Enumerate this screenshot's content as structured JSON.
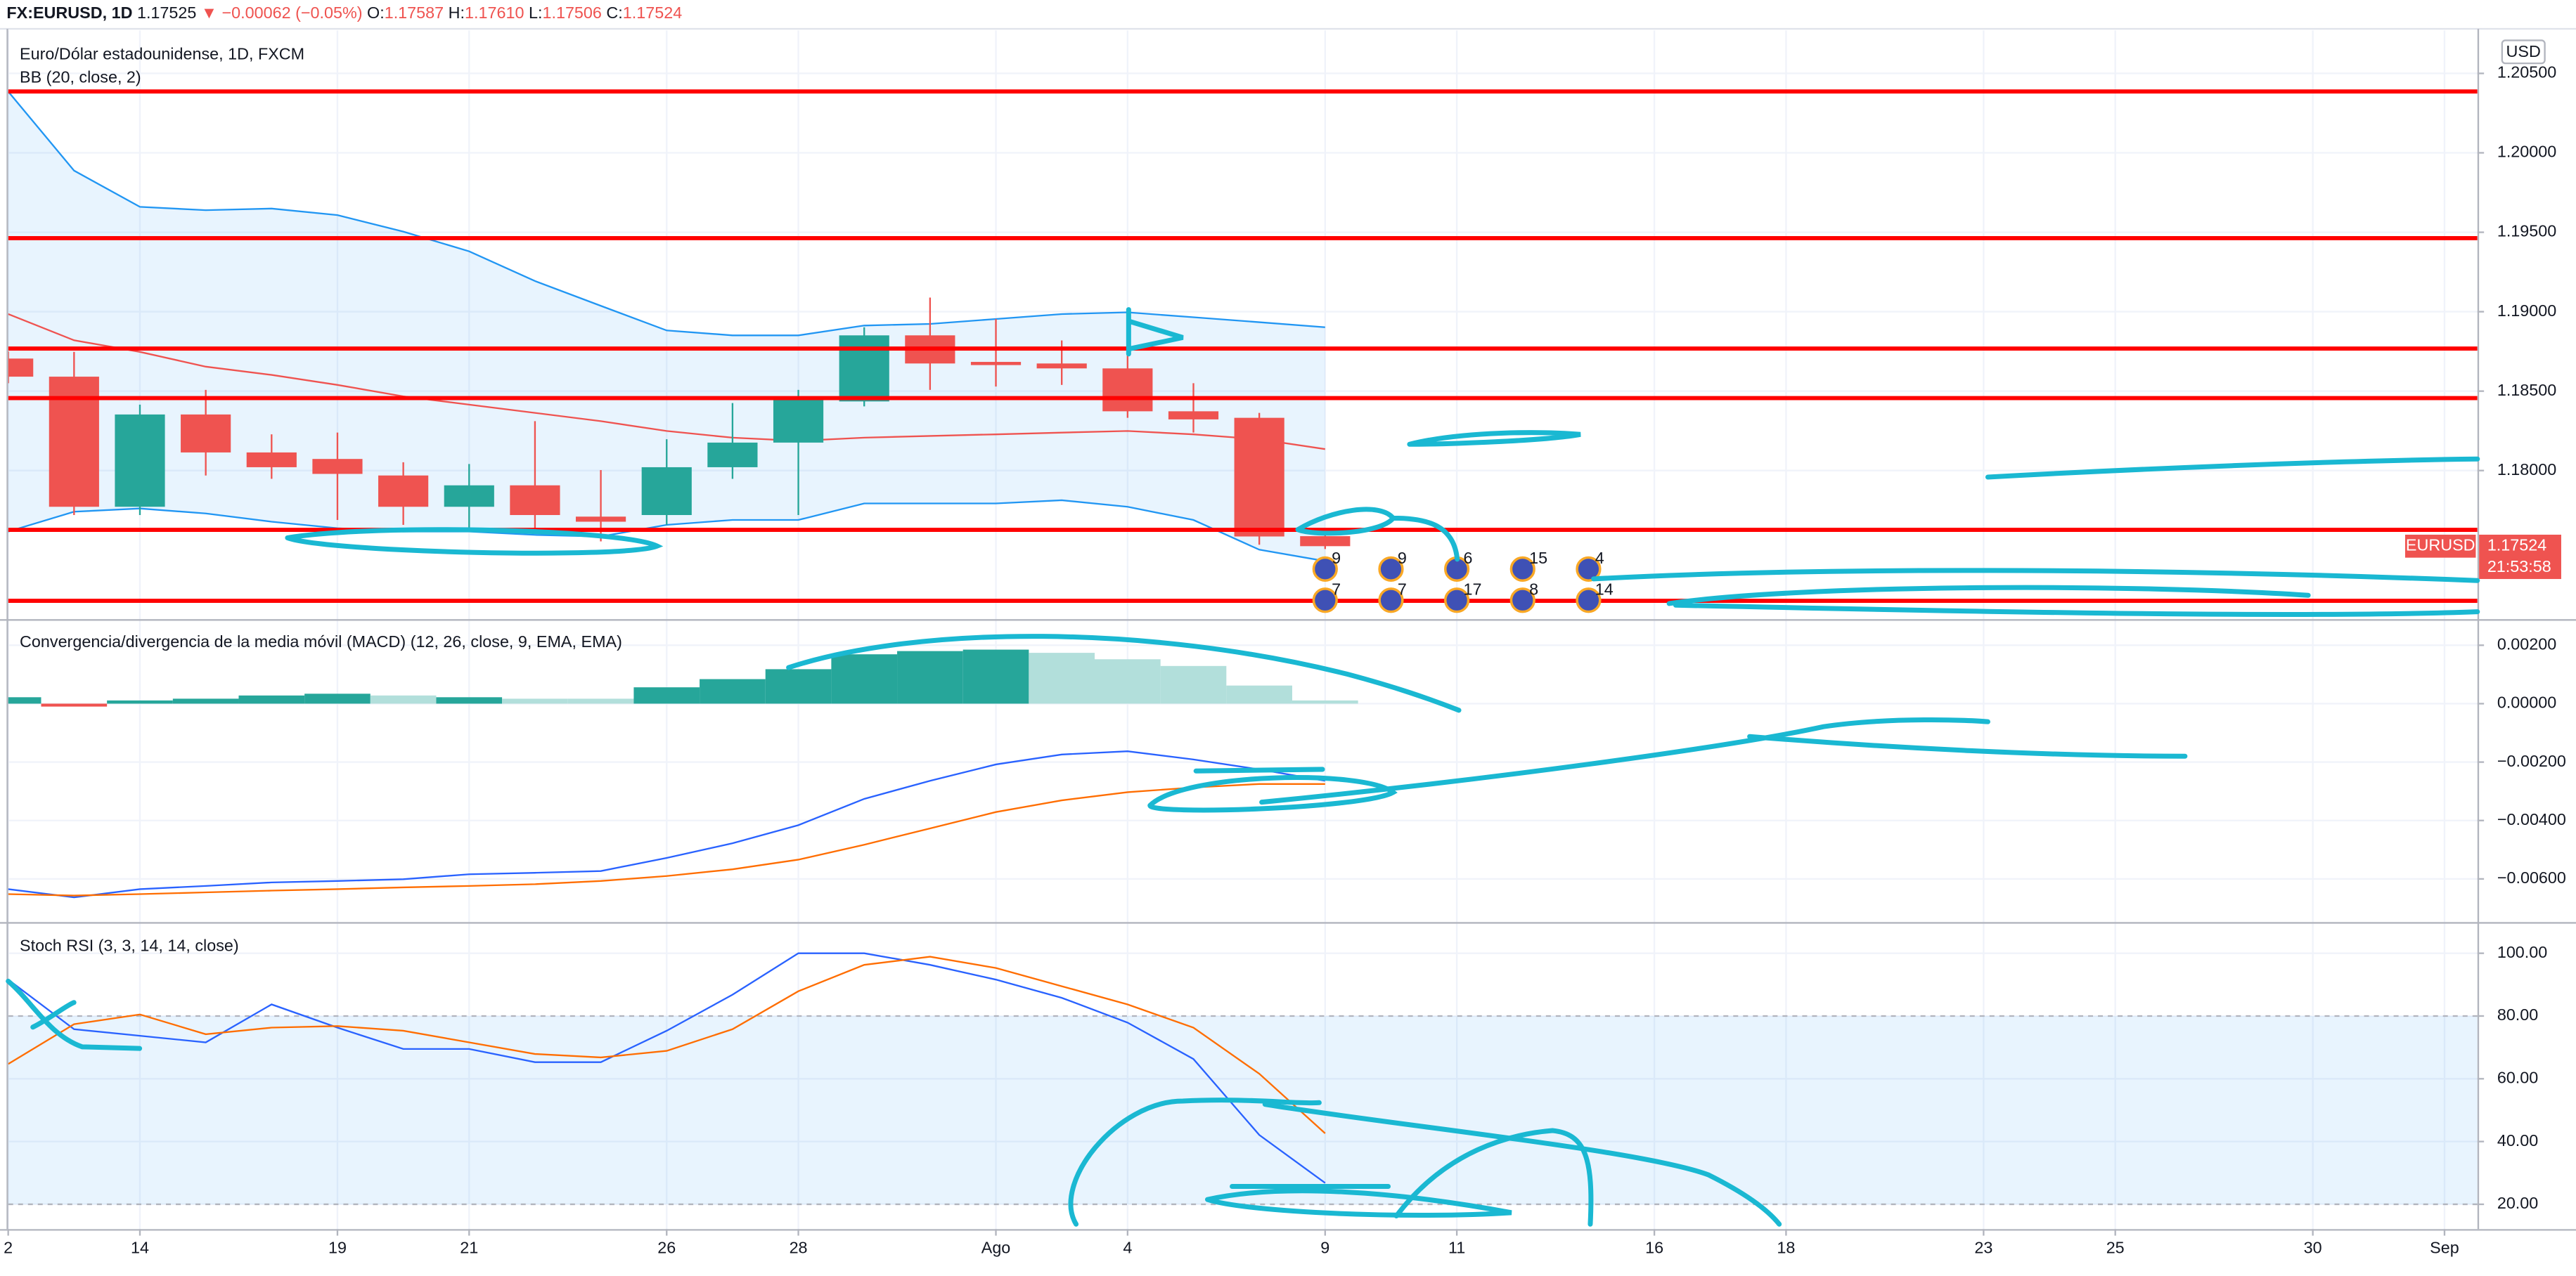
{
  "header": {
    "symbol": "FX:EURUSD, 1D",
    "price": "1.17525",
    "change": "▼ −0.00062 (−0.05%)",
    "ohlc": [
      {
        "label": "O:",
        "value": "1.17587"
      },
      {
        "label": "H:",
        "value": "1.17610"
      },
      {
        "label": "L:",
        "value": "1.17506"
      },
      {
        "label": "C:",
        "value": "1.17524"
      }
    ]
  },
  "chart_data": [
    {
      "type": "candlestick",
      "title": "Euro/Dólar estadounidense, 1D, FXCM",
      "subtitle": "BB (20, close, 2)",
      "currency": "USD",
      "x": [
        0,
        1,
        2,
        3,
        4,
        5,
        6,
        7,
        8,
        9,
        10,
        11,
        12,
        13,
        14,
        15,
        16,
        17,
        18,
        19,
        20
      ],
      "open": [
        1.18705,
        1.18591,
        1.17772,
        1.18353,
        1.18114,
        1.18073,
        1.17969,
        1.17772,
        1.17907,
        1.1771,
        1.1772,
        1.18021,
        1.18176,
        1.18435,
        1.18851,
        1.18684,
        1.18674,
        1.18643,
        1.18373,
        1.18332,
        1.17587
      ],
      "high": [
        1.1875,
        1.18747,
        1.18415,
        1.18508,
        1.18228,
        1.18239,
        1.18052,
        1.18041,
        1.18311,
        1.18003,
        1.18197,
        1.18425,
        1.18508,
        1.18902,
        1.19089,
        1.18954,
        1.18819,
        1.18985,
        1.1855,
        1.18363,
        1.1761
      ],
      "low": [
        1.1855,
        1.1772,
        1.1772,
        1.17969,
        1.17948,
        1.17689,
        1.17658,
        1.17637,
        1.17606,
        1.17554,
        1.17658,
        1.17948,
        1.1772,
        1.18404,
        1.18508,
        1.18529,
        1.18539,
        1.18332,
        1.18239,
        1.17533,
        1.17506
      ],
      "close": [
        1.18591,
        1.17772,
        1.18353,
        1.18114,
        1.18021,
        1.17979,
        1.17772,
        1.17907,
        1.1772,
        1.17678,
        1.18021,
        1.18176,
        1.18456,
        1.18851,
        1.18674,
        1.18664,
        1.18643,
        1.18373,
        1.18322,
        1.17585,
        1.17524
      ],
      "up_color": "#26a69a",
      "down_color": "#ef5350",
      "bands": {
        "color": "#2196f3",
        "middle_color": "#ef5350",
        "upper": [
          1.20386,
          1.19888,
          1.1966,
          1.19639,
          1.19649,
          1.19608,
          1.19504,
          1.1938,
          1.19193,
          1.19037,
          1.18882,
          1.18851,
          1.18851,
          1.18913,
          1.18923,
          1.18954,
          1.18985,
          1.18996,
          1.18965,
          1.18934,
          1.18902
        ],
        "middle": [
          1.18985,
          1.1882,
          1.18747,
          1.18654,
          1.18602,
          1.18539,
          1.18467,
          1.18415,
          1.18363,
          1.18311,
          1.18249,
          1.18207,
          1.18187,
          1.18207,
          1.18218,
          1.18228,
          1.18239,
          1.18249,
          1.18228,
          1.18197,
          1.18135
        ],
        "lower": [
          1.17616,
          1.17741,
          1.17761,
          1.1773,
          1.17678,
          1.17637,
          1.17616,
          1.17616,
          1.17595,
          1.17585,
          1.17658,
          1.17689,
          1.17689,
          1.17793,
          1.17793,
          1.17793,
          1.17813,
          1.17772,
          1.17689,
          1.17502,
          1.1743
        ]
      },
      "levels": [
        1.20386,
        1.19463,
        1.18768,
        1.18456,
        1.17627,
        1.1718
      ],
      "level_color": "#ff0000",
      "last_label": {
        "symbol": "EURUSD",
        "price": "1.17524",
        "countdown": "21:53:58"
      },
      "events": {
        "x": [
          20,
          21,
          22,
          23,
          24
        ],
        "top": [
          "9",
          "9",
          "6",
          "15",
          "4"
        ],
        "bottom": [
          "7",
          "7",
          "17",
          "8",
          "14"
        ]
      },
      "ylim": [
        1.1707,
        1.2077
      ],
      "yticks": [
        {
          "value": 1.205,
          "label": "1.20500"
        },
        {
          "value": 1.2,
          "label": "1.20000"
        },
        {
          "value": 1.195,
          "label": "1.19500"
        },
        {
          "value": 1.19,
          "label": "1.19000"
        },
        {
          "value": 1.185,
          "label": "1.18500"
        },
        {
          "value": 1.18,
          "label": "1.18000"
        }
      ]
    },
    {
      "type": "macd",
      "title": "Convergencia/divergencia de la media móvil (MACD) (12, 26, close, 9, EMA, EMA)",
      "x": [
        0,
        1,
        2,
        3,
        4,
        5,
        6,
        7,
        8,
        9,
        10,
        11,
        12,
        13,
        14,
        15,
        16,
        17,
        18,
        19,
        20
      ],
      "histogram": {
        "values": [
          0.00022,
          -0.0001,
          0.00011,
          0.00017,
          0.00028,
          0.00034,
          0.00028,
          0.00022,
          0.00017,
          0.00017,
          0.00056,
          0.00084,
          0.00118,
          0.00169,
          0.0018,
          0.00185,
          0.00174,
          0.00152,
          0.00129,
          0.00062,
          0.00011
        ],
        "colors": [
          "#26a69a",
          "#ef5350",
          "#26a69a",
          "#26a69a",
          "#26a69a",
          "#26a69a",
          "#b2dfdb",
          "#26a69a",
          "#b2dfdb",
          "#b2dfdb",
          "#26a69a",
          "#26a69a",
          "#26a69a",
          "#26a69a",
          "#26a69a",
          "#26a69a",
          "#b2dfdb",
          "#b2dfdb",
          "#b2dfdb",
          "#b2dfdb",
          "#b2dfdb"
        ]
      },
      "series": [
        {
          "color": "#2962ff",
          "values": [
            -0.00635,
            -0.00663,
            -0.00635,
            -0.00624,
            -0.00612,
            -0.00607,
            -0.00601,
            -0.00584,
            -0.00579,
            -0.00573,
            -0.00528,
            -0.00478,
            -0.00416,
            -0.00326,
            -0.00264,
            -0.00208,
            -0.00174,
            -0.00163,
            -0.00191,
            -0.00225,
            -0.00264
          ]
        },
        {
          "color": "#ff6d00",
          "values": [
            -0.00652,
            -0.00657,
            -0.00652,
            -0.00646,
            -0.0064,
            -0.00635,
            -0.00629,
            -0.00624,
            -0.00618,
            -0.00607,
            -0.0059,
            -0.00567,
            -0.00534,
            -0.00483,
            -0.00427,
            -0.00371,
            -0.00331,
            -0.00303,
            -0.00287,
            -0.00275,
            -0.00275
          ]
        }
      ],
      "ylim": [
        -0.00742,
        0.00281
      ],
      "yticks": [
        {
          "value": 0.002,
          "label": "0.00200"
        },
        {
          "value": 0,
          "label": "0.00000"
        },
        {
          "value": -0.002,
          "label": "−0.00200"
        },
        {
          "value": -0.004,
          "label": "−0.00400"
        },
        {
          "value": -0.006,
          "label": "−0.00600"
        }
      ]
    },
    {
      "type": "line",
      "title": "Stoch RSI (3, 3, 14, 14, close)",
      "x": [
        0,
        1,
        2,
        3,
        4,
        5,
        6,
        7,
        8,
        9,
        10,
        11,
        12,
        13,
        14,
        15,
        16,
        17,
        18,
        19,
        20
      ],
      "series": [
        {
          "color": "#2962ff",
          "values": [
            91.6,
            75.8,
            73.7,
            71.6,
            83.7,
            76.3,
            69.5,
            69.5,
            65.3,
            65.3,
            75.3,
            86.8,
            100,
            100,
            96.3,
            91.6,
            85.8,
            77.9,
            66.3,
            42.1,
            26.8
          ]
        },
        {
          "color": "#ff6d00",
          "values": [
            64.7,
            77.4,
            80.5,
            74.2,
            76.3,
            76.8,
            75.3,
            71.6,
            67.9,
            66.8,
            68.9,
            75.8,
            87.9,
            96.3,
            98.9,
            95.3,
            89.5,
            83.7,
            76.3,
            61.6,
            42.6
          ]
        }
      ],
      "band": [
        20,
        80
      ],
      "ylim": [
        12.1,
        108.9
      ],
      "yticks": [
        {
          "value": 100,
          "label": "100.00"
        },
        {
          "value": 80,
          "label": "80.00"
        },
        {
          "value": 60,
          "label": "60.00"
        },
        {
          "value": 40,
          "label": "40.00"
        },
        {
          "value": 20,
          "label": "20.00"
        }
      ],
      "xlim": [
        0,
        37.5
      ],
      "xticks": [
        {
          "value": 0,
          "label": "2"
        },
        {
          "value": 2,
          "label": "14"
        },
        {
          "value": 5,
          "label": "19"
        },
        {
          "value": 7,
          "label": "21"
        },
        {
          "value": 10,
          "label": "26"
        },
        {
          "value": 12,
          "label": "28"
        },
        {
          "value": 15,
          "label": "Ago"
        },
        {
          "value": 17,
          "label": "4"
        },
        {
          "value": 20,
          "label": "9"
        },
        {
          "value": 22,
          "label": "11"
        },
        {
          "value": 25,
          "label": "16"
        },
        {
          "value": 27,
          "label": "18"
        },
        {
          "value": 30,
          "label": "23"
        },
        {
          "value": 32,
          "label": "25"
        },
        {
          "value": 35,
          "label": "30"
        },
        {
          "value": 37,
          "label": "Sep"
        }
      ]
    }
  ]
}
